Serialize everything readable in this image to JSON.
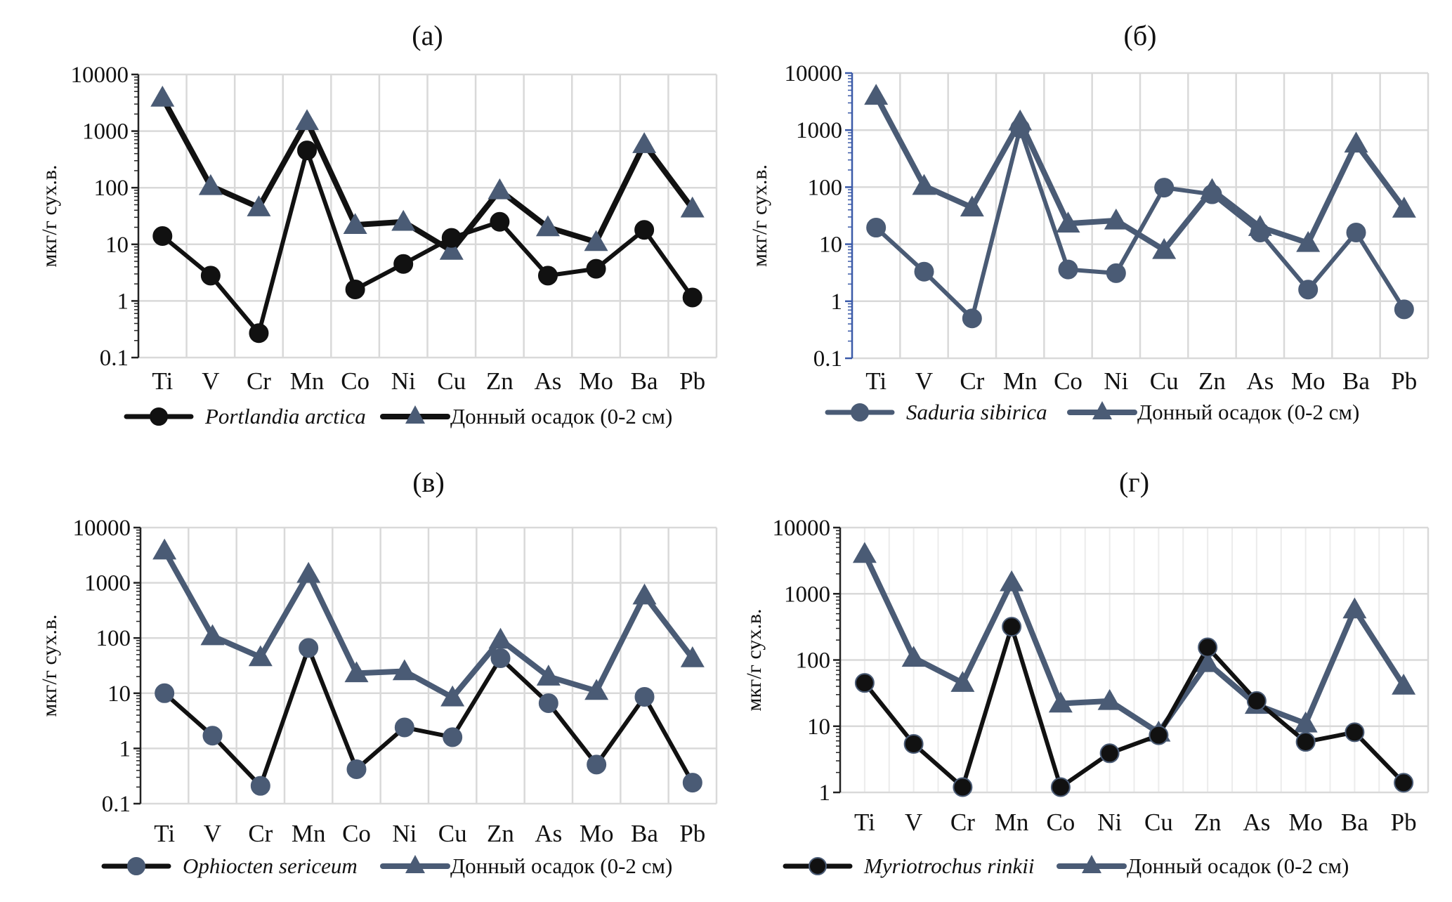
{
  "figure": {
    "y_axis_label": "мкг/г сух.в.",
    "categories": [
      "Ti",
      "V",
      "Cr",
      "Mn",
      "Co",
      "Ni",
      "Cu",
      "Zn",
      "As",
      "Mo",
      "Ba",
      "Pb"
    ],
    "colors": {
      "black": "#111111",
      "slate": "#4a5b75"
    }
  },
  "chart_data": [
    {
      "type": "line",
      "title": "(а)",
      "xlabel": "",
      "ylabel": "мкг/г сух.в.",
      "yscale": "log",
      "ylim": [
        0.1,
        10000
      ],
      "yticks": [
        "10000",
        "1000",
        "100",
        "10",
        "1",
        "0.1"
      ],
      "grid": true,
      "legend": "bottom",
      "categories": [
        "Ti",
        "V",
        "Cr",
        "Mn",
        "Co",
        "Ni",
        "Cu",
        "Zn",
        "As",
        "Mo",
        "Ba",
        "Pb"
      ],
      "series": [
        {
          "name": "Portlandia arctica",
          "italic": true,
          "marker": "circle",
          "line_color": "#111111",
          "marker_color": "#111111",
          "values": [
            14,
            2.8,
            0.27,
            455,
            1.6,
            4.5,
            13,
            25,
            2.8,
            3.7,
            18,
            1.15
          ]
        },
        {
          "name": "Донный осадок (0-2 см)",
          "italic": false,
          "marker": "triangle",
          "line_color": "#111111",
          "marker_color": "#4a5b75",
          "values": [
            3900,
            107,
            45,
            1500,
            22,
            25,
            7.7,
            90,
            20,
            11,
            590,
            43
          ]
        }
      ]
    },
    {
      "type": "line",
      "title": "(б)",
      "xlabel": "",
      "ylabel": "мкг/г сух.в.",
      "yscale": "log",
      "ylim": [
        0.1,
        10000
      ],
      "yticks": [
        "10000",
        "1000",
        "100",
        "10",
        "1",
        "0.1"
      ],
      "grid": true,
      "legend": "bottom",
      "categories": [
        "Ti",
        "V",
        "Cr",
        "Mn",
        "Co",
        "Ni",
        "Cu",
        "Zn",
        "As",
        "Mo",
        "Ba",
        "Pb"
      ],
      "series": [
        {
          "name": "Saduria sibirica",
          "italic": true,
          "marker": "circle",
          "line_color": "#4a5b75",
          "marker_color": "#4a5b75",
          "values": [
            19.5,
            3.3,
            0.5,
            1070,
            3.6,
            3.1,
            98,
            75,
            16,
            1.6,
            16,
            0.72
          ]
        },
        {
          "name": "Донный осадок (0-2 см)",
          "italic": false,
          "marker": "triangle",
          "line_color": "#4a5b75",
          "marker_color": "#4a5b75",
          "values": [
            4000,
            105,
            44,
            1420,
            23,
            26,
            7.9,
            89,
            20,
            10.5,
            580,
            42
          ]
        }
      ]
    },
    {
      "type": "line",
      "title": "(в)",
      "xlabel": "",
      "ylabel": "мкг/г сух.в.",
      "yscale": "log",
      "ylim": [
        0.1,
        10000
      ],
      "yticks": [
        "10000",
        "1000",
        "100",
        "10",
        "1",
        "0.1"
      ],
      "grid": true,
      "legend": "bottom",
      "categories": [
        "Ti",
        "V",
        "Cr",
        "Mn",
        "Co",
        "Ni",
        "Cu",
        "Zn",
        "As",
        "Mo",
        "Ba",
        "Pb"
      ],
      "series": [
        {
          "name": "Ophiocten sericeum",
          "italic": true,
          "marker": "circle",
          "line_color": "#111111",
          "marker_color": "#4a5b75",
          "values": [
            10,
            1.7,
            0.21,
            66,
            0.42,
            2.4,
            1.6,
            43,
            6.6,
            0.51,
            8.6,
            0.24
          ]
        },
        {
          "name": "Донный осадок (0-2 см)",
          "italic": false,
          "marker": "triangle",
          "line_color": "#4a5b75",
          "marker_color": "#4a5b75",
          "values": [
            3850,
            108,
            45,
            1450,
            23,
            25,
            8.4,
            93,
            20,
            11,
            590,
            43
          ]
        }
      ]
    },
    {
      "type": "line",
      "title": "(г)",
      "xlabel": "",
      "ylabel": "мкг/г сух.в.",
      "yscale": "log",
      "ylim": [
        1,
        10000
      ],
      "yticks": [
        "10000",
        "1000",
        "100",
        "10",
        "1"
      ],
      "grid": true,
      "legend": "bottom",
      "categories": [
        "Ti",
        "V",
        "Cr",
        "Mn",
        "Co",
        "Ni",
        "Cu",
        "Zn",
        "As",
        "Mo",
        "Ba",
        "Pb"
      ],
      "series": [
        {
          "name": "Myriotrochus rinkii",
          "italic": true,
          "marker": "circle",
          "line_color": "#111111",
          "marker_color": "#111111",
          "values": [
            45,
            5.4,
            1.2,
            318,
            1.2,
            3.9,
            7.3,
            155,
            24,
            5.8,
            8.1,
            1.4
          ]
        },
        {
          "name": "Донный осадок (0-2 см)",
          "italic": false,
          "marker": "triangle",
          "line_color": "#4a5b75",
          "marker_color": "#4a5b75",
          "values": [
            4000,
            108,
            45,
            1490,
            22,
            24,
            8,
            90,
            21,
            11,
            580,
            41
          ]
        }
      ]
    }
  ]
}
